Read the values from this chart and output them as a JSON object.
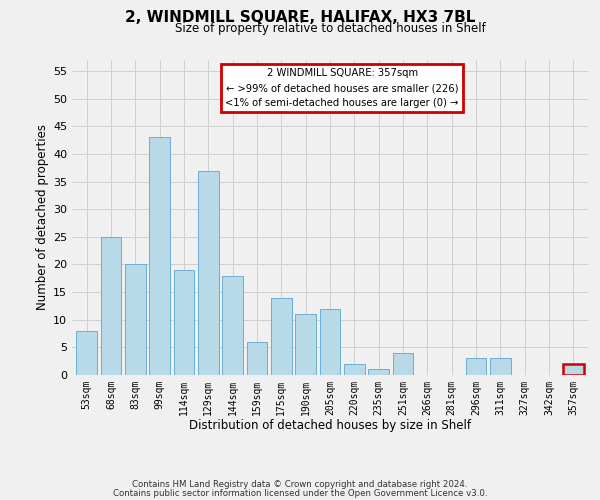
{
  "title": "2, WINDMILL SQUARE, HALIFAX, HX3 7BL",
  "subtitle": "Size of property relative to detached houses in Shelf",
  "xlabel": "Distribution of detached houses by size in Shelf",
  "ylabel": "Number of detached properties",
  "bar_labels": [
    "53sqm",
    "68sqm",
    "83sqm",
    "99sqm",
    "114sqm",
    "129sqm",
    "144sqm",
    "159sqm",
    "175sqm",
    "190sqm",
    "205sqm",
    "220sqm",
    "235sqm",
    "251sqm",
    "266sqm",
    "281sqm",
    "296sqm",
    "311sqm",
    "327sqm",
    "342sqm",
    "357sqm"
  ],
  "bar_values": [
    8,
    25,
    20,
    43,
    19,
    37,
    18,
    6,
    14,
    11,
    12,
    2,
    1,
    4,
    0,
    0,
    3,
    3,
    0,
    0,
    2
  ],
  "bar_color": "#b8d9e8",
  "bar_edge_color": "#6aaed6",
  "highlight_bar_index": 20,
  "highlight_bar_edge_color": "#cc0000",
  "ylim": [
    0,
    57
  ],
  "yticks": [
    0,
    5,
    10,
    15,
    20,
    25,
    30,
    35,
    40,
    45,
    50,
    55
  ],
  "legend_title": "2 WINDMILL SQUARE: 357sqm",
  "legend_line1": "← >99% of detached houses are smaller (226)",
  "legend_line2": "<1% of semi-detached houses are larger (0) →",
  "legend_box_edge_color": "#cc0000",
  "footer_line1": "Contains HM Land Registry data © Crown copyright and database right 2024.",
  "footer_line2": "Contains public sector information licensed under the Open Government Licence v3.0.",
  "background_color": "#f0f0f0",
  "grid_color": "#d0d0d0"
}
